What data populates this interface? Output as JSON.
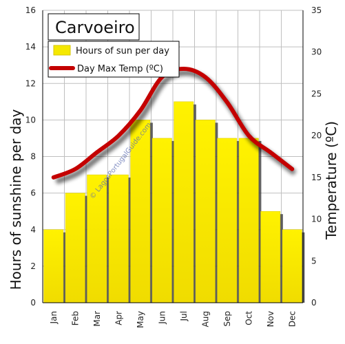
{
  "chart_data": {
    "type": "bar",
    "title": "Carvoeiro",
    "categories": [
      "Jan",
      "Feb",
      "Mar",
      "Apr",
      "May",
      "Jun",
      "Jul",
      "Aug",
      "Sep",
      "Oct",
      "Nov",
      "Dec"
    ],
    "series": [
      {
        "name": "Hours of sun per day",
        "type": "bar",
        "axis": "left",
        "color": "#f5e800",
        "values": [
          4,
          6,
          7,
          7,
          10,
          9,
          11,
          10,
          9,
          9,
          5,
          4
        ]
      },
      {
        "name": "Day Max Temp (ºC)",
        "type": "line",
        "axis": "right",
        "color": "#c40000",
        "values": [
          15,
          16,
          18,
          20,
          23,
          27,
          28,
          27,
          24,
          20,
          18,
          16
        ]
      }
    ],
    "ylabel": "Hours of sunshine per day",
    "ylim": [
      0,
      16
    ],
    "yticks": [
      "0",
      "2",
      "4",
      "6",
      "8",
      "10",
      "12",
      "14",
      "16"
    ],
    "y2label": "Temperature (ºC)",
    "y2lim": [
      0,
      35
    ],
    "y2ticks": [
      "0",
      "5",
      "10",
      "15",
      "20",
      "25",
      "30",
      "35"
    ],
    "grid": true,
    "legend_position": "top-left",
    "watermark": "© LagosPortugalGuide.com"
  }
}
